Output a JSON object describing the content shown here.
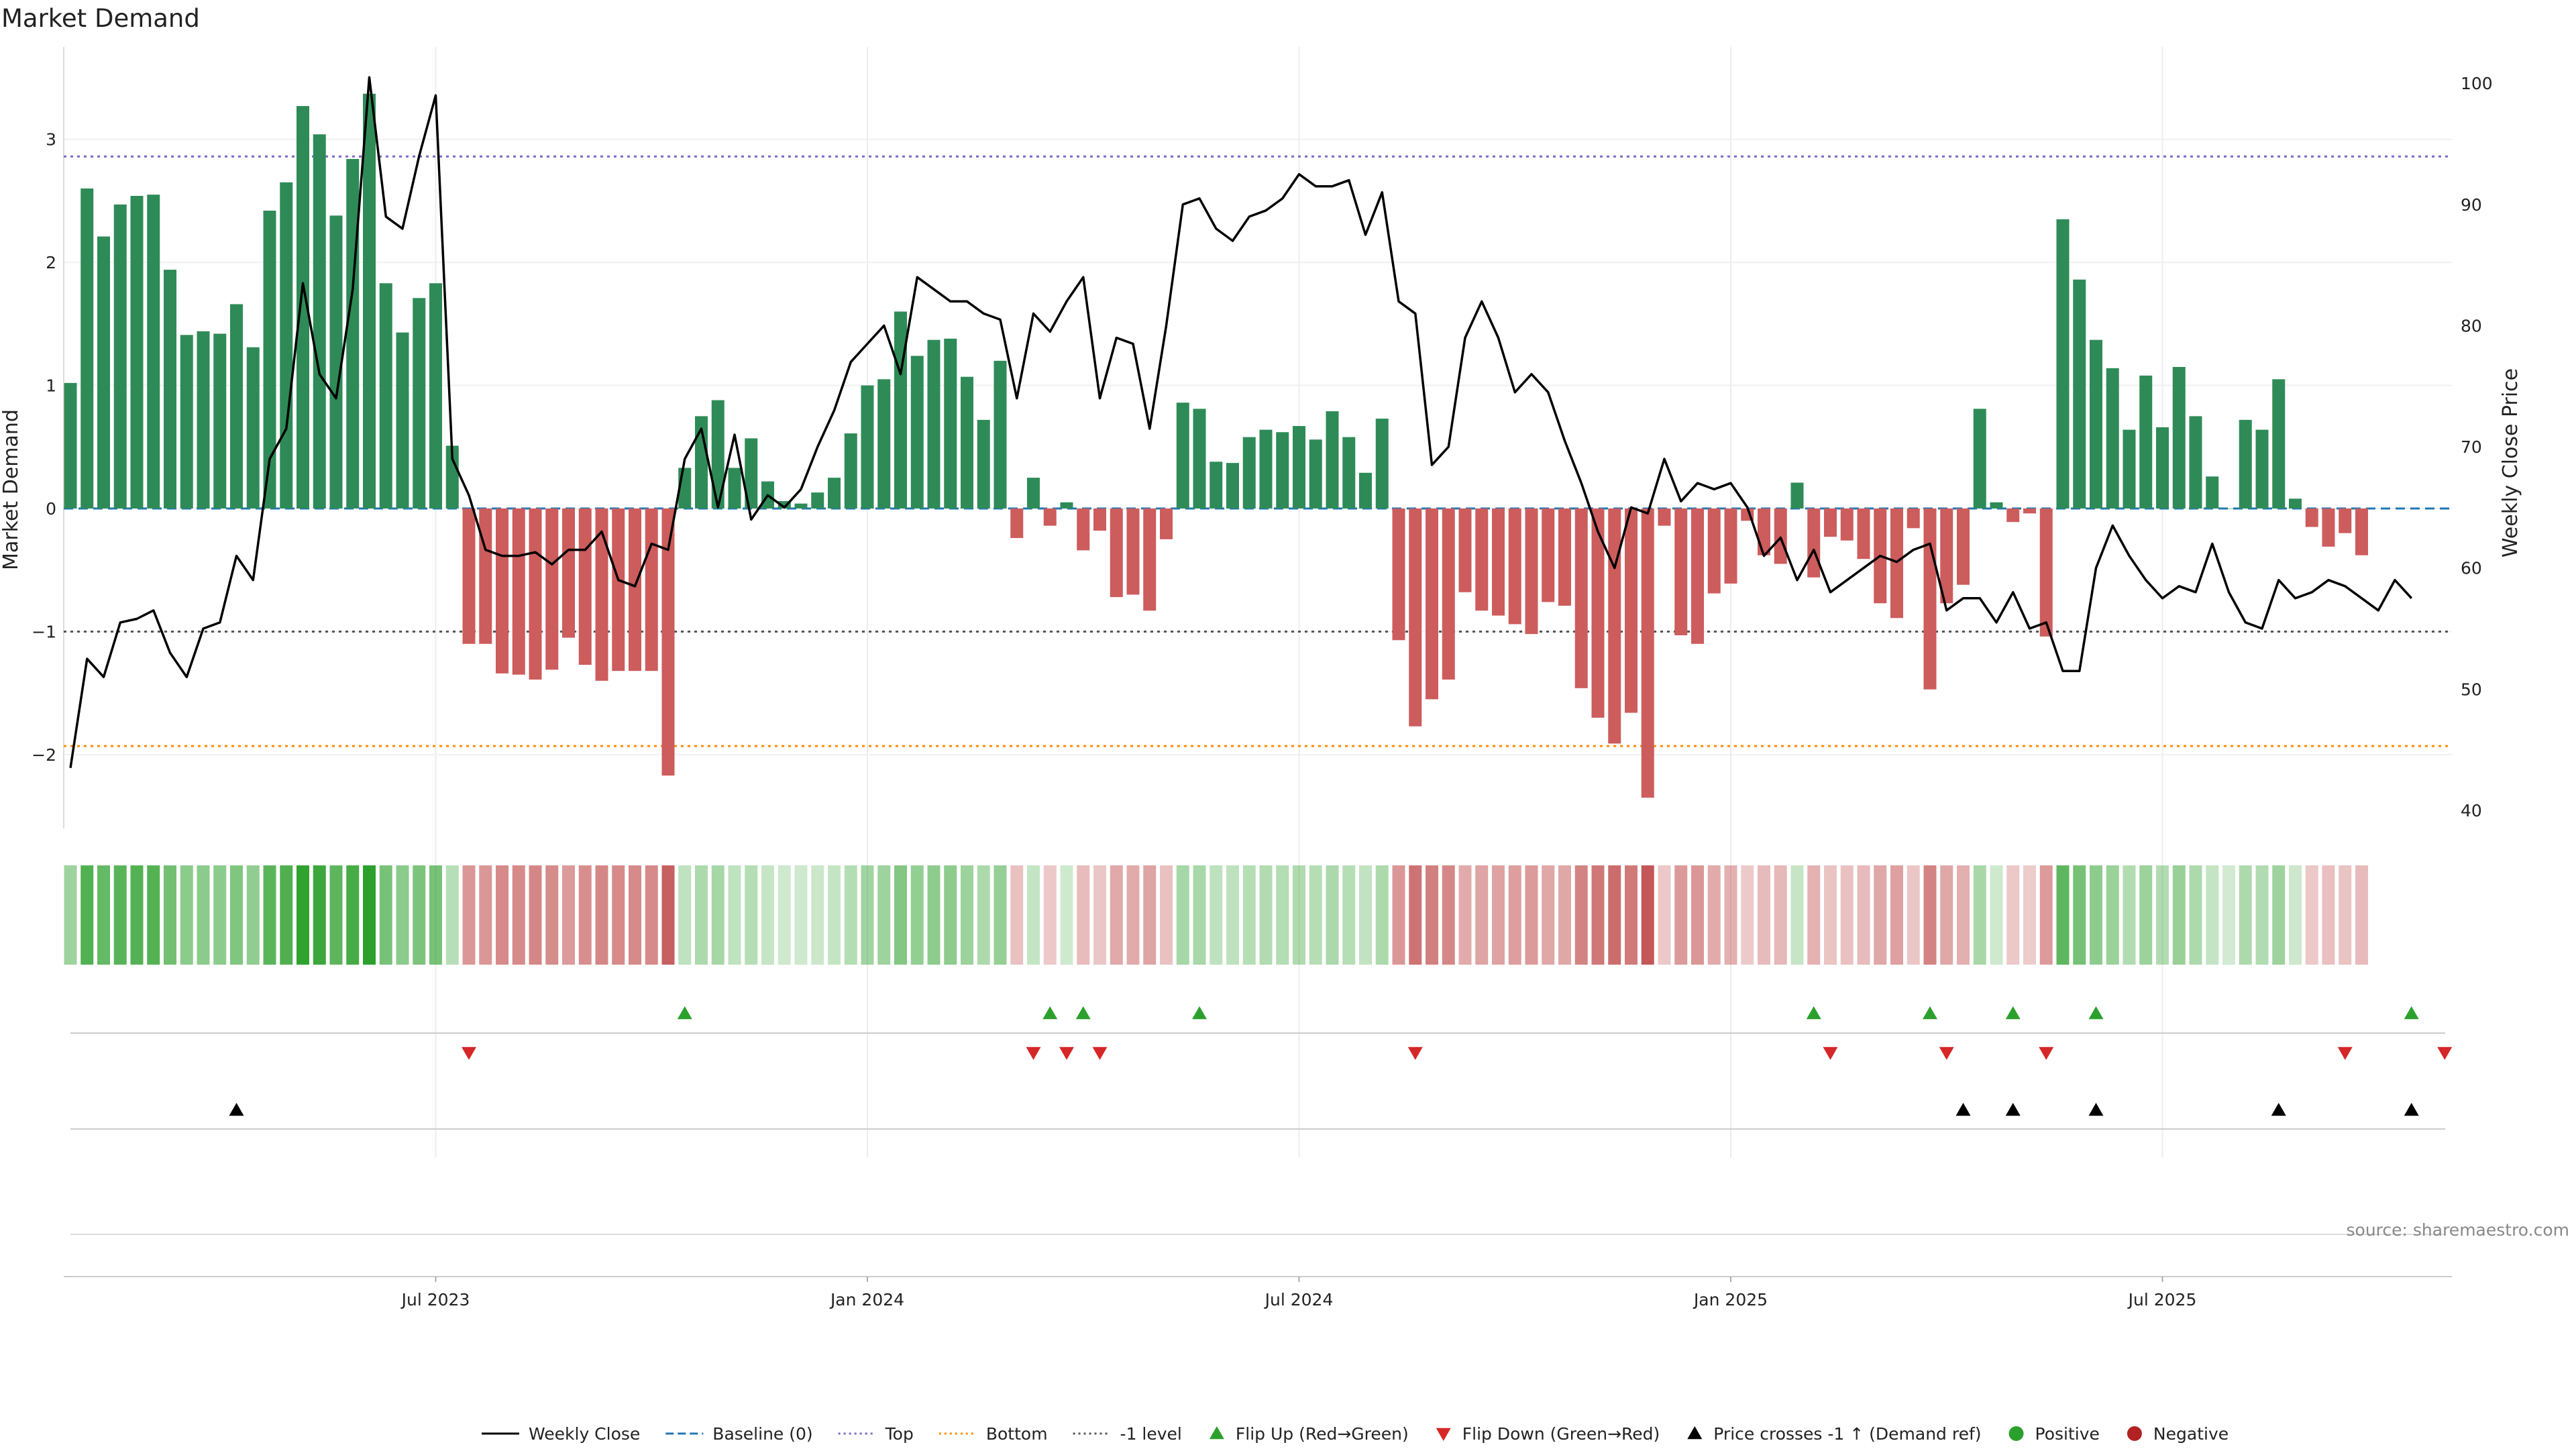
{
  "chart_data": {
    "type": "bar",
    "title": "Market Demand",
    "ylabel": "Market Demand",
    "y2label": "Weekly Close Price",
    "ylim": [
      -2.6,
      3.75
    ],
    "y2lim": [
      38.5,
      103
    ],
    "yticks": [
      {
        "value": 3,
        "label": "3"
      },
      {
        "value": 2,
        "label": "2"
      },
      {
        "value": 1,
        "label": "1"
      },
      {
        "value": 0,
        "label": "0"
      },
      {
        "value": -1,
        "label": "−1"
      },
      {
        "value": -2,
        "label": "−2"
      }
    ],
    "y2ticks": [
      {
        "value": 100,
        "label": "100"
      },
      {
        "value": 90,
        "label": "90"
      },
      {
        "value": 80,
        "label": "80"
      },
      {
        "value": 70,
        "label": "70"
      },
      {
        "value": 60,
        "label": "60"
      },
      {
        "value": 50,
        "label": "50"
      },
      {
        "value": 40,
        "label": "40"
      }
    ],
    "xticks": [
      {
        "index": 22,
        "label": "Jul 2023"
      },
      {
        "index": 48,
        "label": "Jan 2024"
      },
      {
        "index": 74,
        "label": "Jul 2024"
      },
      {
        "index": 100,
        "label": "Jan 2025"
      },
      {
        "index": 126,
        "label": "Jul 2025"
      }
    ],
    "levels": {
      "top": 2.86,
      "bottom": -1.93,
      "minus_one": -1.0,
      "baseline": 0
    },
    "demand": [
      1.02,
      2.6,
      2.21,
      2.47,
      2.54,
      2.55,
      1.94,
      1.41,
      1.44,
      1.42,
      1.66,
      1.31,
      2.42,
      2.65,
      3.27,
      3.04,
      2.38,
      2.84,
      3.37,
      1.83,
      1.43,
      1.71,
      1.83,
      0.51,
      -1.1,
      -1.1,
      -1.34,
      -1.35,
      -1.39,
      -1.31,
      -1.05,
      -1.27,
      -1.4,
      -1.32,
      -1.32,
      -1.32,
      -2.17,
      0.33,
      0.75,
      0.88,
      0.33,
      0.57,
      0.22,
      0.06,
      0.04,
      0.13,
      0.25,
      0.61,
      1.0,
      1.05,
      1.6,
      1.24,
      1.37,
      1.38,
      1.07,
      0.72,
      1.2,
      -0.24,
      0.25,
      -0.14,
      0.05,
      -0.34,
      -0.18,
      -0.72,
      -0.7,
      -0.83,
      -0.25,
      0.86,
      0.81,
      0.38,
      0.37,
      0.58,
      0.64,
      0.62,
      0.67,
      0.56,
      0.79,
      0.58,
      0.29,
      0.73,
      -1.07,
      -1.77,
      -1.55,
      -1.39,
      -0.68,
      -0.83,
      -0.87,
      -0.94,
      -1.02,
      -0.76,
      -0.79,
      -1.46,
      -1.7,
      -1.91,
      -1.66,
      -2.35,
      -0.14,
      -1.03,
      -1.1,
      -0.69,
      -0.61,
      -0.1,
      -0.38,
      -0.45,
      0.21,
      -0.56,
      -0.23,
      -0.26,
      -0.41,
      -0.77,
      -0.89,
      -0.16,
      -1.47,
      -0.77,
      -0.62,
      0.81,
      0.05,
      -0.11,
      -0.04,
      -1.04,
      2.35,
      1.86,
      1.37,
      1.14,
      0.64,
      1.08,
      0.66,
      1.15,
      0.75,
      0.26,
      0.0,
      0.72,
      0.64,
      1.05,
      0.08,
      -0.15,
      -0.31,
      -0.2,
      -0.38
    ],
    "close": [
      43.5,
      52.5,
      51.0,
      55.5,
      55.8,
      56.5,
      53.0,
      51.0,
      55.0,
      55.5,
      61.0,
      59.0,
      69.0,
      71.5,
      83.5,
      76.0,
      74.0,
      83.0,
      100.5,
      89.0,
      88.0,
      94.0,
      99.0,
      69.0,
      66.0,
      61.5,
      61.0,
      61.0,
      61.3,
      60.3,
      61.5,
      61.5,
      63.0,
      59.0,
      58.5,
      62.0,
      61.5,
      69.0,
      71.5,
      65.0,
      71.0,
      64.0,
      66.0,
      65.0,
      66.5,
      70.0,
      73.0,
      77.0,
      78.5,
      80.0,
      76.0,
      84.0,
      83.0,
      82.0,
      82.0,
      81.0,
      80.5,
      74.0,
      81.0,
      79.5,
      82.0,
      84.0,
      74.0,
      79.0,
      78.5,
      71.5,
      80.0,
      90.0,
      90.5,
      88.0,
      87.0,
      89.0,
      89.5,
      90.5,
      92.5,
      91.5,
      91.5,
      92.0,
      87.5,
      91.0,
      82.0,
      81.0,
      68.5,
      70.0,
      79.0,
      82.0,
      79.0,
      74.5,
      76.0,
      74.5,
      70.5,
      67.0,
      63.0,
      60.0,
      65.0,
      64.5,
      69.0,
      65.5,
      67.0,
      66.5,
      67.0,
      65.0,
      61.0,
      62.5,
      59.0,
      61.5,
      58.0,
      59.0,
      60.0,
      61.0,
      60.5,
      61.5,
      62.0,
      56.5,
      57.5,
      57.5,
      55.5,
      58.0,
      55.0,
      55.5,
      51.5,
      51.5,
      60.0,
      63.5,
      61.0,
      59.0,
      57.5,
      58.5,
      58.0,
      62.0,
      58.0,
      55.5,
      55.0,
      59.0,
      57.5,
      58.0,
      59.0,
      58.5,
      57.5,
      56.5,
      59.0,
      57.5
    ],
    "flip_up_idx": [
      37,
      59,
      61,
      68,
      105,
      112,
      117,
      122,
      141
    ],
    "flip_down_idx": [
      24,
      58,
      60,
      62,
      81,
      106,
      113,
      119,
      137,
      143
    ],
    "cross_idx": [
      10,
      114,
      117,
      122,
      133,
      141
    ],
    "colors": {
      "pos_bar": "#2e8b57",
      "neg_bar": "#cd5c5c",
      "close": "#000000",
      "baseline": "#1f77b4",
      "top": "#7b68c8",
      "bottom": "#ff8c00",
      "minus_one": "#555555",
      "flip_up": "#2ca02c",
      "flip_down": "#d62728",
      "cross": "#000000",
      "positive": "#2ca02c",
      "negative": "#b22222"
    },
    "legend": [
      {
        "key": "close",
        "label": "Weekly Close",
        "shape": "solid"
      },
      {
        "key": "baseline",
        "label": "Baseline (0)",
        "shape": "dashed"
      },
      {
        "key": "top",
        "label": "Top",
        "shape": "dotted"
      },
      {
        "key": "bottom",
        "label": "Bottom",
        "shape": "dotted"
      },
      {
        "key": "minus_one",
        "label": "-1 level",
        "shape": "dotted"
      },
      {
        "key": "flip_up",
        "label": "Flip Up (Red→Green)",
        "shape": "tri-up"
      },
      {
        "key": "flip_down",
        "label": "Flip Down (Green→Red)",
        "shape": "tri-down"
      },
      {
        "key": "cross",
        "label": "Price crosses -1 ↑ (Demand ref)",
        "shape": "tri-up"
      },
      {
        "key": "positive",
        "label": "Positive",
        "shape": "dot"
      },
      {
        "key": "negative",
        "label": "Negative",
        "shape": "dot"
      }
    ],
    "legend_position": "bottom-center"
  },
  "source_note": "source: sharemaestro.com"
}
